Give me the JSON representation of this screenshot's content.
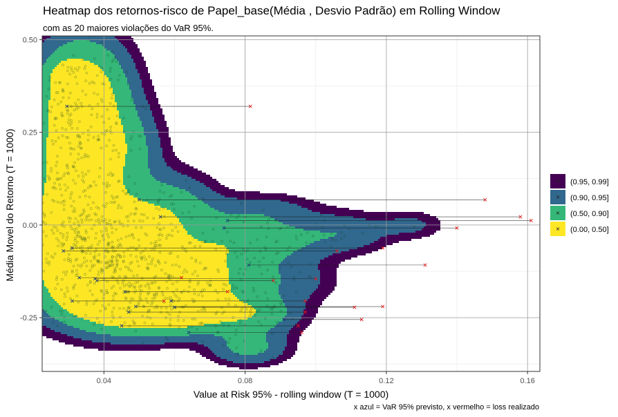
{
  "chart_data": {
    "type": "heatmap",
    "title": "Heatmap dos retornos-risco de Papel_base(Média , Desvio Padrão) em Rolling Window",
    "subtitle": "com as 20 maiores violações do VaR 95%.",
    "xlabel": "Value at Risk 95% - rolling window (T = 1000)",
    "ylabel": "Média Movel do Retorno (T = 1000)",
    "caption": "x azul = VaR 95% previsto, x vermelho = loss realizado",
    "xlim": [
      0.0225,
      0.1635
    ],
    "ylim": [
      -0.395,
      0.51
    ],
    "x_ticks": [
      {
        "value": 0.04,
        "label": "0.04"
      },
      {
        "value": 0.08,
        "label": "0.08"
      },
      {
        "value": 0.12,
        "label": "0.12"
      },
      {
        "value": 0.16,
        "label": "0.16"
      }
    ],
    "y_ticks": [
      {
        "value": 0.5,
        "label": "0.50"
      },
      {
        "value": 0.25,
        "label": "0.25"
      },
      {
        "value": 0.0,
        "label": "0.00"
      },
      {
        "value": -0.25,
        "label": "-0.25"
      }
    ],
    "legend": {
      "position": "right",
      "entries": [
        {
          "label": "(0.95, 0.99]",
          "color": "#440154"
        },
        {
          "label": "(0.90, 0.95]",
          "color": "#31688e"
        },
        {
          "label": "(0.50, 0.90]",
          "color": "#35b779"
        },
        {
          "label": "(0.00, 0.50]",
          "color": "#fde725"
        }
      ]
    },
    "density_blobs": [
      {
        "x": 0.04,
        "y": -0.075,
        "sx": 0.012,
        "sy": 0.09,
        "w": 1.0
      },
      {
        "x": 0.049,
        "y": -0.19,
        "sx": 0.013,
        "sy": 0.055,
        "w": 0.75
      },
      {
        "x": 0.033,
        "y": -0.02,
        "sx": 0.007,
        "sy": 0.055,
        "w": 0.55
      },
      {
        "x": 0.031,
        "y": 0.15,
        "sx": 0.007,
        "sy": 0.12,
        "w": 0.55
      },
      {
        "x": 0.034,
        "y": 0.36,
        "sx": 0.008,
        "sy": 0.09,
        "w": 0.5
      },
      {
        "x": 0.044,
        "y": 0.2,
        "sx": 0.007,
        "sy": 0.08,
        "w": 0.28
      },
      {
        "x": 0.0295,
        "y": 0.4,
        "sx": 0.0025,
        "sy": 0.022,
        "w": 0.45
      },
      {
        "x": 0.032,
        "y": 0.31,
        "sx": 0.0018,
        "sy": 0.014,
        "w": 0.35
      },
      {
        "x": 0.0395,
        "y": 0.11,
        "sx": 0.0022,
        "sy": 0.02,
        "w": 0.4
      },
      {
        "x": 0.06,
        "y": 0.04,
        "sx": 0.008,
        "sy": 0.06,
        "w": 0.2
      },
      {
        "x": 0.076,
        "y": -0.045,
        "sx": 0.01,
        "sy": 0.045,
        "w": 0.22
      },
      {
        "x": 0.068,
        "y": -0.14,
        "sx": 0.011,
        "sy": 0.055,
        "w": 0.3
      },
      {
        "x": 0.063,
        "y": -0.24,
        "sx": 0.012,
        "sy": 0.035,
        "w": 0.32
      },
      {
        "x": 0.083,
        "y": -0.24,
        "sx": 0.008,
        "sy": 0.035,
        "w": 0.22
      },
      {
        "x": 0.081,
        "y": -0.33,
        "sx": 0.007,
        "sy": 0.03,
        "w": 0.2
      },
      {
        "x": 0.092,
        "y": -0.04,
        "sx": 0.01,
        "sy": 0.04,
        "w": 0.13
      },
      {
        "x": 0.109,
        "y": -0.02,
        "sx": 0.008,
        "sy": 0.035,
        "w": 0.12
      },
      {
        "x": 0.093,
        "y": -0.15,
        "sx": 0.008,
        "sy": 0.04,
        "w": 0.11
      },
      {
        "x": 0.085,
        "y": 0.04,
        "sx": 0.01,
        "sy": 0.03,
        "w": 0.1
      },
      {
        "x": 0.127,
        "y": 0.0,
        "sx": 0.006,
        "sy": 0.025,
        "w": 0.085
      }
    ],
    "density_levels": [
      0.07,
      0.16,
      0.35
    ],
    "violations": [
      {
        "var": 0.0295,
        "loss": 0.0815,
        "y": 0.32
      },
      {
        "var": 0.05,
        "loss": 0.148,
        "y": 0.068
      },
      {
        "var": 0.056,
        "loss": 0.158,
        "y": 0.022
      },
      {
        "var": 0.075,
        "loss": 0.161,
        "y": 0.012
      },
      {
        "var": 0.074,
        "loss": 0.14,
        "y": -0.008
      },
      {
        "var": 0.031,
        "loss": 0.119,
        "y": -0.062
      },
      {
        "var": 0.0285,
        "loss": 0.106,
        "y": -0.07
      },
      {
        "var": 0.081,
        "loss": 0.131,
        "y": -0.108
      },
      {
        "var": 0.0375,
        "loss": 0.1,
        "y": -0.145
      },
      {
        "var": 0.038,
        "loss": 0.088,
        "y": -0.15
      },
      {
        "var": 0.033,
        "loss": 0.062,
        "y": -0.142
      },
      {
        "var": 0.046,
        "loss": 0.075,
        "y": -0.18
      },
      {
        "var": 0.031,
        "loss": 0.057,
        "y": -0.205
      },
      {
        "var": 0.059,
        "loss": 0.097,
        "y": -0.205
      },
      {
        "var": 0.049,
        "loss": 0.119,
        "y": -0.22
      },
      {
        "var": 0.06,
        "loss": 0.111,
        "y": -0.222
      },
      {
        "var": 0.047,
        "loss": 0.097,
        "y": -0.235
      },
      {
        "var": 0.091,
        "loss": 0.113,
        "y": -0.255
      },
      {
        "var": 0.045,
        "loss": 0.095,
        "y": -0.272
      },
      {
        "var": 0.064,
        "loss": 0.096,
        "y": -0.29
      }
    ],
    "scatter_points": 1200,
    "colors": {
      "violation_line": "#1a1a1a",
      "var_marker": "#1f3d7a",
      "loss_marker": "#e31a1c",
      "point": "#0c3d20",
      "grid_major": "#9a9a9a",
      "grid_minor": "#ebebeb"
    }
  }
}
